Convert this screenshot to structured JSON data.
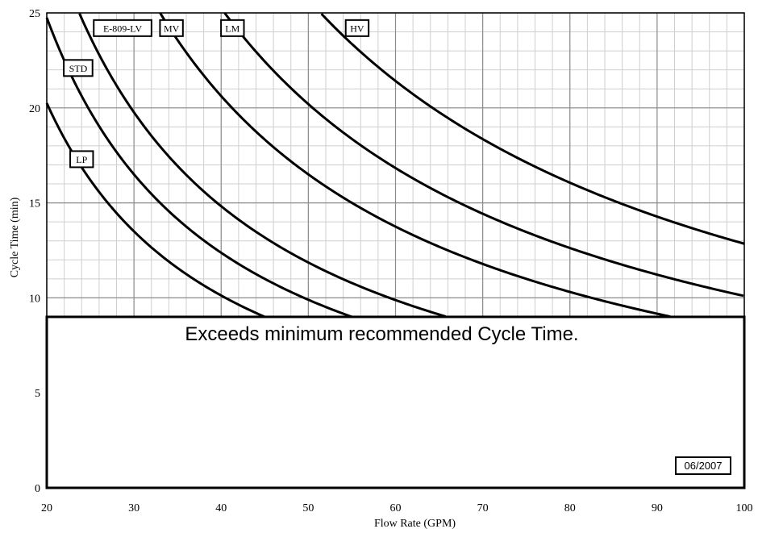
{
  "chart_data": {
    "type": "line",
    "xlabel": "Flow Rate (GPM)",
    "ylabel": "Cycle Time (min)",
    "xlim": [
      20,
      100
    ],
    "ylim": [
      0,
      25
    ],
    "x_ticks": [
      20,
      30,
      40,
      50,
      60,
      70,
      80,
      90,
      100
    ],
    "y_ticks": [
      0,
      5,
      10,
      15,
      20,
      25
    ],
    "minor_grid_x_step": 2,
    "minor_grid_y_step": 1,
    "grid": true,
    "series": [
      {
        "name": "LP",
        "k": 405,
        "x_start": 20,
        "label_at": [
          24,
          17.3
        ]
      },
      {
        "name": "STD",
        "k": 495,
        "x_start": 20,
        "label_at": [
          23.6,
          22.1
        ]
      },
      {
        "name": "E-809-LV",
        "k": 593,
        "x_start": 21,
        "label_at": [
          28.7,
          24.2
        ]
      },
      {
        "name": "MV",
        "k": 825,
        "x_start": 33,
        "label_at": [
          34.3,
          24.2
        ]
      },
      {
        "name": "LM",
        "k": 1010,
        "x_start": 40.4,
        "label_at": [
          41.3,
          24.2
        ]
      },
      {
        "name": "HV",
        "k": 1285,
        "x_start": 51.5,
        "label_at": [
          55.6,
          24.2
        ]
      }
    ],
    "shaded_region": {
      "y_max": 9,
      "text": "Exceeds minimum recommended Cycle Time."
    },
    "date_stamp": "06/2007"
  },
  "colors": {
    "background": "#ffffff",
    "major_grid": "#8c8c8c",
    "minor_grid": "#cfcfcf",
    "curve": "#000000"
  }
}
